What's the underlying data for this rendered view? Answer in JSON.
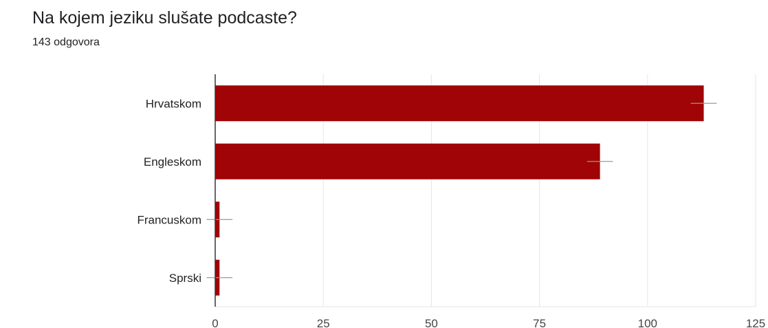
{
  "question": {
    "title": "Na kojem jeziku slušate podcaste?",
    "responses": "143 odgovora"
  },
  "colors": {
    "bar": "#a00406",
    "grid": "#e6e6e6",
    "axis": "#333333",
    "error_bar": "#999999"
  },
  "chart_data": {
    "type": "bar",
    "orientation": "horizontal",
    "title": "",
    "xlabel": "",
    "ylabel": "",
    "categories": [
      "Hrvatskom",
      "Engleskom",
      "Francuskom",
      "Sprski"
    ],
    "values": [
      113,
      89,
      1,
      1
    ],
    "error_bars": [
      3,
      3,
      3,
      3
    ],
    "xlim": [
      0,
      125
    ],
    "xticks": [
      0,
      25,
      50,
      75,
      100,
      125
    ],
    "grid": true,
    "legend": "none"
  }
}
